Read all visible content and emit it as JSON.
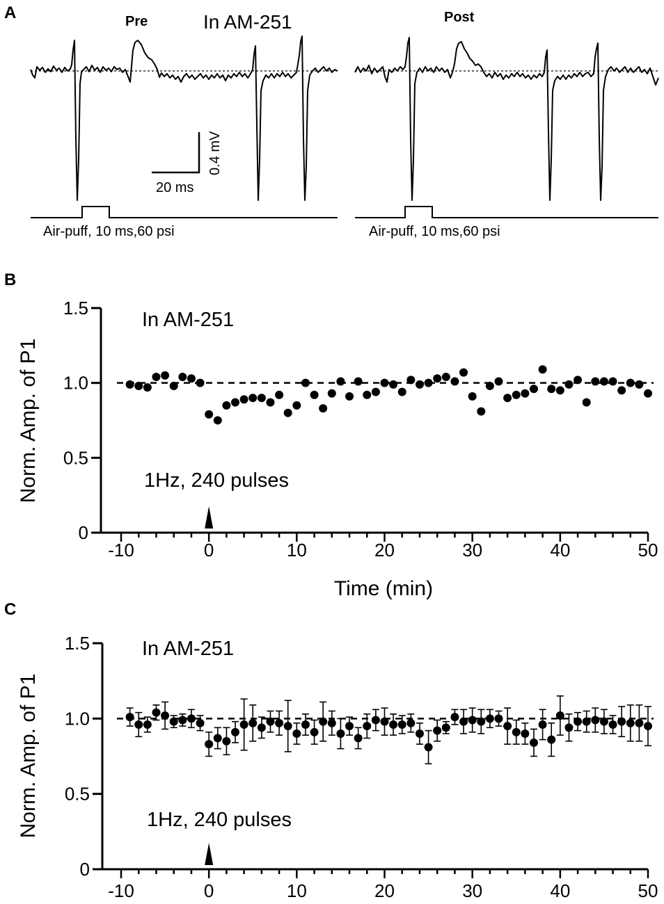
{
  "panel_labels": {
    "a": "A",
    "b": "B",
    "c": "C"
  },
  "panel_a": {
    "title": "In AM-251",
    "pre_label": "Pre",
    "post_label": "Post",
    "scale_y": "0.4 mV",
    "scale_x": "20 ms",
    "stim_label_pre": "Air-puff, 10 ms,60 psi",
    "stim_label_post": "Air-puff, 10 ms,60 psi"
  },
  "chart_data": [
    {
      "type": "scatter",
      "panel": "B",
      "annotation": "In AM-251",
      "stimulus": "1Hz, 240 pulses",
      "stimulus_time": 0,
      "xlabel": "Time (min)",
      "ylabel": "Norm. Amp. of P1",
      "xlim": [
        -10,
        50
      ],
      "ylim": [
        0,
        1.5
      ],
      "xticks": [
        "-10",
        "0",
        "10",
        "20",
        "30",
        "40",
        "50"
      ],
      "yticks": [
        "0",
        "0.5",
        "1.0",
        "1.5"
      ],
      "baseline": 1.0,
      "x": [
        -9,
        -8,
        -7,
        -6,
        -5,
        -4,
        -3,
        -2,
        -1,
        0,
        1,
        2,
        3,
        4,
        5,
        6,
        7,
        8,
        9,
        10,
        11,
        12,
        13,
        14,
        15,
        16,
        17,
        18,
        19,
        20,
        21,
        22,
        23,
        24,
        25,
        26,
        27,
        28,
        29,
        30,
        31,
        32,
        33,
        34,
        35,
        36,
        37,
        38,
        39,
        40,
        41,
        42,
        43,
        44,
        45,
        46,
        47,
        48,
        49,
        50
      ],
      "y": [
        0.99,
        0.98,
        0.97,
        1.04,
        1.05,
        0.98,
        1.04,
        1.03,
        1.0,
        0.79,
        0.75,
        0.85,
        0.87,
        0.89,
        0.9,
        0.9,
        0.87,
        0.92,
        0.8,
        0.85,
        1.0,
        0.92,
        0.83,
        0.93,
        1.01,
        0.91,
        1.01,
        0.92,
        0.94,
        1.0,
        0.99,
        0.94,
        1.02,
        0.99,
        1.0,
        1.03,
        1.04,
        1.01,
        1.07,
        0.91,
        0.81,
        0.98,
        1.01,
        0.9,
        0.92,
        0.93,
        0.96,
        1.09,
        0.96,
        0.95,
        0.99,
        1.02,
        0.87,
        1.01,
        1.01,
        1.01,
        0.95,
        1.0,
        0.99,
        0.93
      ]
    },
    {
      "type": "scatter",
      "panel": "C",
      "annotation": "In AM-251",
      "stimulus": "1Hz, 240 pulses",
      "stimulus_time": 0,
      "xlabel": "",
      "ylabel": "Norm. Amp. of P1",
      "xlim": [
        -10,
        50
      ],
      "ylim": [
        0,
        1.5
      ],
      "xticks": [
        "-10",
        "0",
        "10",
        "20",
        "30",
        "40",
        "50"
      ],
      "yticks": [
        "0",
        "0.5",
        "1.0",
        "1.5"
      ],
      "baseline": 1.0,
      "x": [
        -9,
        -8,
        -7,
        -6,
        -5,
        -4,
        -3,
        -2,
        -1,
        0,
        1,
        2,
        3,
        4,
        5,
        6,
        7,
        8,
        9,
        10,
        11,
        12,
        13,
        14,
        15,
        16,
        17,
        18,
        19,
        20,
        21,
        22,
        23,
        24,
        25,
        26,
        27,
        28,
        29,
        30,
        31,
        32,
        33,
        34,
        35,
        36,
        37,
        38,
        39,
        40,
        41,
        42,
        43,
        44,
        45,
        46,
        47,
        48,
        49,
        50
      ],
      "y": [
        1.01,
        0.96,
        0.96,
        1.04,
        1.02,
        0.98,
        0.99,
        1.0,
        0.97,
        0.83,
        0.87,
        0.85,
        0.91,
        0.96,
        0.97,
        0.94,
        0.98,
        0.97,
        0.95,
        0.9,
        0.96,
        0.91,
        0.98,
        0.97,
        0.9,
        0.95,
        0.87,
        0.95,
        0.99,
        0.98,
        0.96,
        0.96,
        0.97,
        0.9,
        0.81,
        0.92,
        0.94,
        1.01,
        0.98,
        0.99,
        0.98,
        1.0,
        1.0,
        0.95,
        0.91,
        0.9,
        0.84,
        0.96,
        0.86,
        1.02,
        0.94,
        0.98,
        0.98,
        0.99,
        0.98,
        0.96,
        0.98,
        0.97,
        0.97,
        0.95
      ],
      "err": [
        0.06,
        0.08,
        0.05,
        0.05,
        0.09,
        0.04,
        0.04,
        0.06,
        0.05,
        0.08,
        0.07,
        0.09,
        0.07,
        0.17,
        0.12,
        0.07,
        0.07,
        0.08,
        0.17,
        0.07,
        0.07,
        0.08,
        0.13,
        0.08,
        0.1,
        0.06,
        0.07,
        0.08,
        0.07,
        0.09,
        0.07,
        0.06,
        0.06,
        0.07,
        0.11,
        0.07,
        0.04,
        0.05,
        0.08,
        0.08,
        0.08,
        0.06,
        0.05,
        0.12,
        0.08,
        0.07,
        0.09,
        0.1,
        0.11,
        0.13,
        0.09,
        0.06,
        0.07,
        0.08,
        0.08,
        0.06,
        0.1,
        0.12,
        0.12,
        0.13
      ]
    }
  ]
}
